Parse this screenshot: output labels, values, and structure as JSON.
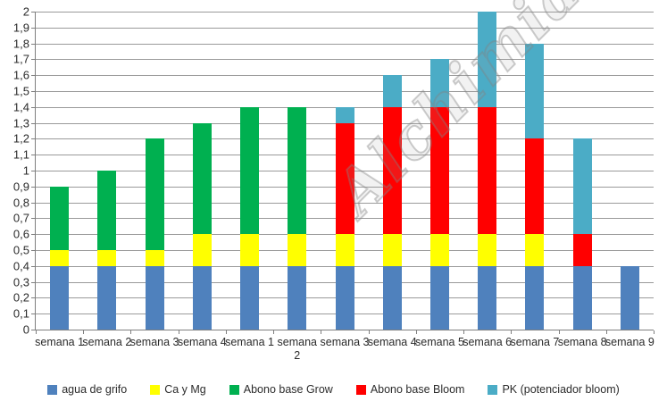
{
  "watermark_text": "Alchimiaweb.com",
  "chart_data": {
    "type": "bar",
    "stacked": true,
    "title": "",
    "xlabel": "",
    "ylabel": "",
    "ylim": [
      0,
      2
    ],
    "ytick_step": 0.1,
    "decimal_separator": ",",
    "grid": true,
    "legend_position": "bottom",
    "categories": [
      "semana 1",
      "semana 2",
      "semana 3",
      "semana 4",
      "semana 1",
      "semana\n2",
      "semana 3",
      "semana 4",
      "semana 5",
      "semana 6",
      "semana 7",
      "semana 8",
      "semana 9"
    ],
    "series": [
      {
        "name": "agua de grifo",
        "color": "#4F81BD",
        "values": [
          0.4,
          0.4,
          0.4,
          0.4,
          0.4,
          0.4,
          0.4,
          0.4,
          0.4,
          0.4,
          0.4,
          0.4,
          0.4
        ]
      },
      {
        "name": "Ca y Mg",
        "color": "#FFFF00",
        "values": [
          0.1,
          0.1,
          0.1,
          0.2,
          0.2,
          0.2,
          0.2,
          0.2,
          0.2,
          0.2,
          0.2,
          0.0,
          0.0
        ]
      },
      {
        "name": "Abono base Grow",
        "color": "#00B050",
        "values": [
          0.4,
          0.5,
          0.7,
          0.7,
          0.8,
          0.8,
          0.0,
          0.0,
          0.0,
          0.0,
          0.0,
          0.0,
          0.0
        ]
      },
      {
        "name": "Abono base Bloom",
        "color": "#FF0000",
        "values": [
          0.0,
          0.0,
          0.0,
          0.0,
          0.0,
          0.0,
          0.7,
          0.8,
          0.8,
          0.8,
          0.6,
          0.2,
          0.0
        ]
      },
      {
        "name": "PK (potenciador bloom)",
        "color": "#4BACC6",
        "values": [
          0.0,
          0.0,
          0.0,
          0.0,
          0.0,
          0.0,
          0.1,
          0.2,
          0.3,
          0.6,
          0.6,
          0.6,
          0.0
        ]
      }
    ],
    "bar_totals": [
      0.9,
      1.0,
      1.2,
      1.3,
      1.4,
      1.4,
      1.4,
      1.6,
      1.7,
      2.0,
      1.8,
      1.2,
      0.4
    ]
  },
  "colors": {
    "gridline": "#9a9a9a",
    "axis": "#7f7f7f",
    "text": "#2b2b2b",
    "background": "#ffffff"
  }
}
